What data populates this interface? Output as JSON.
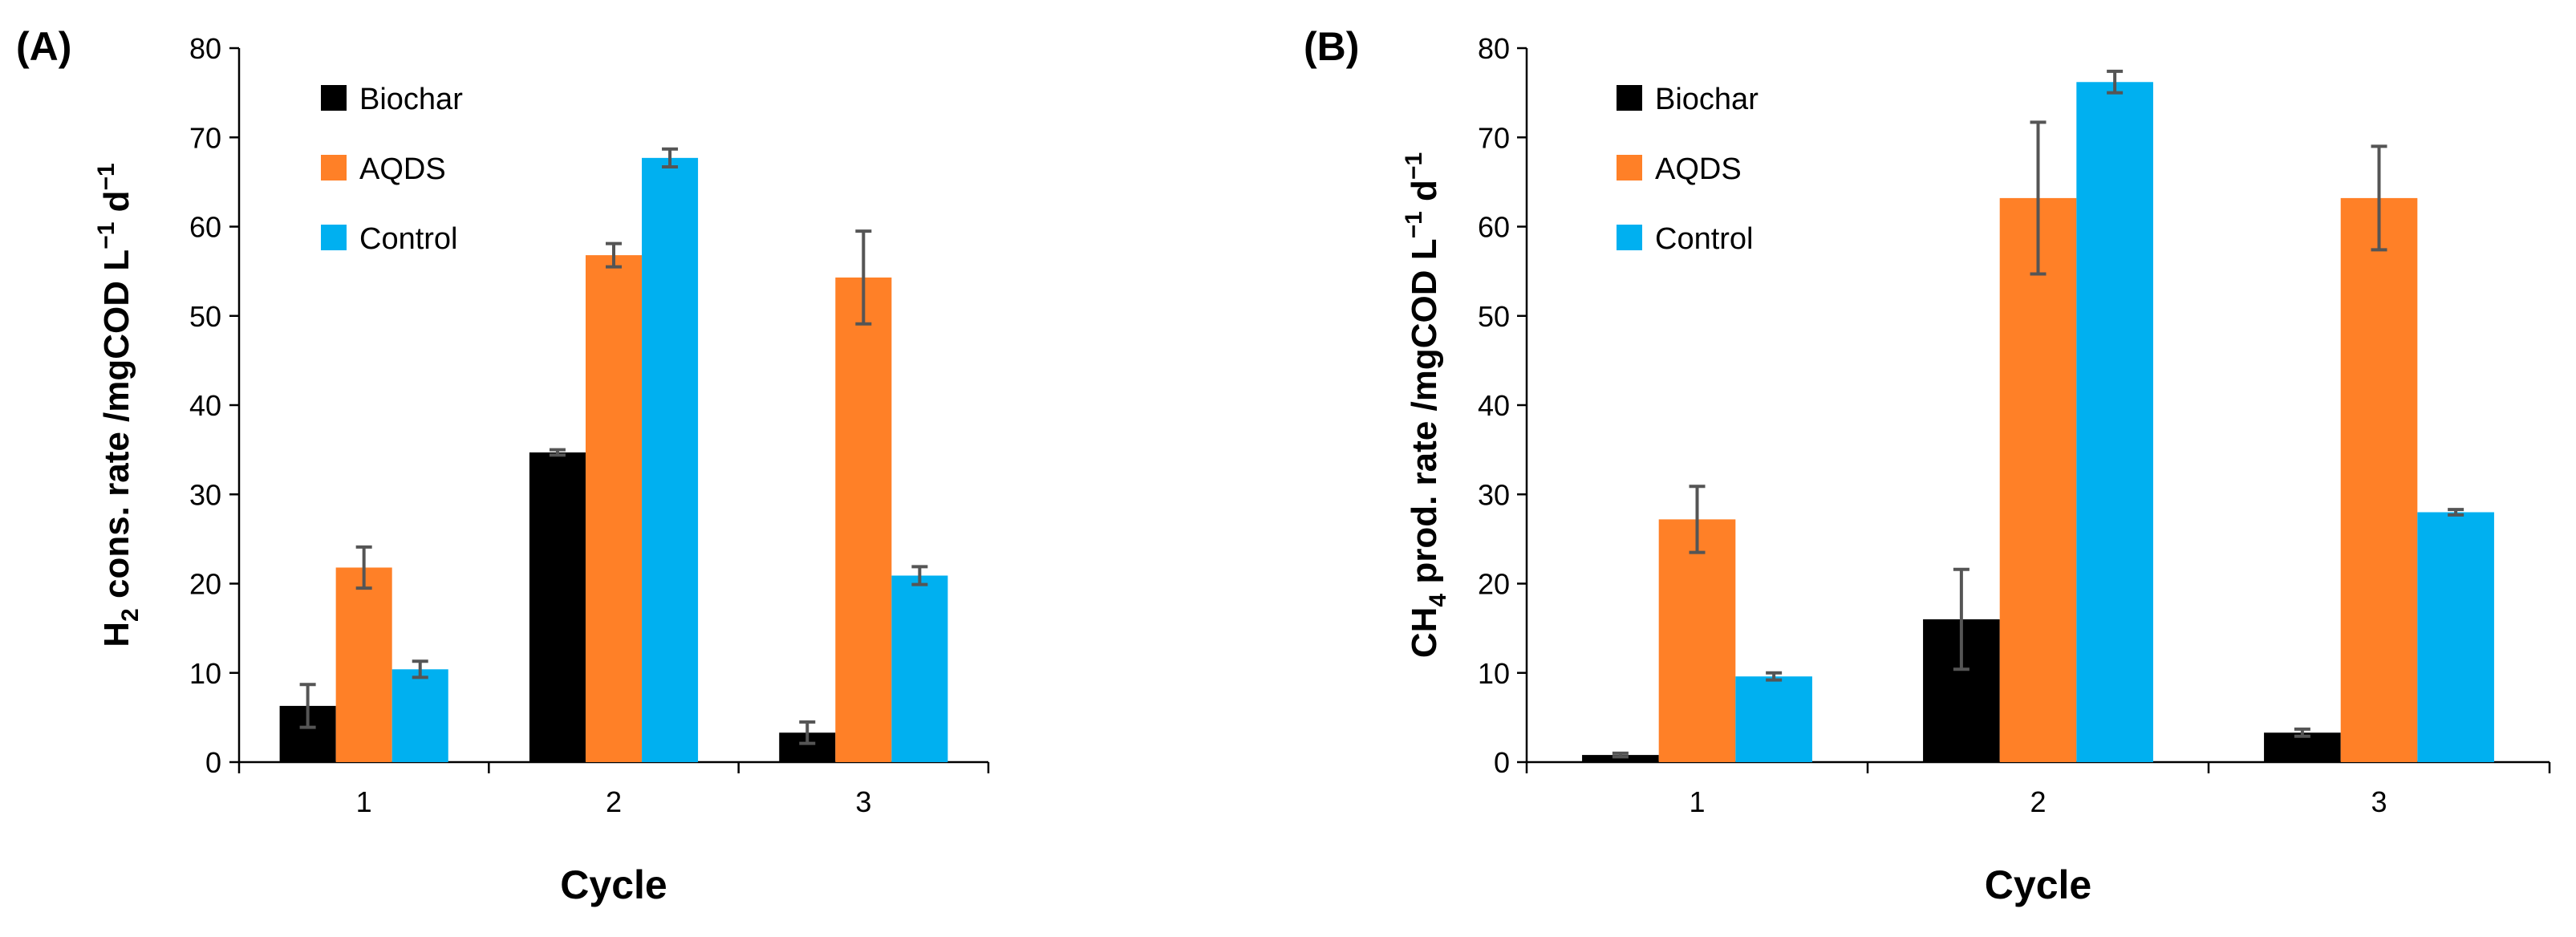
{
  "chart_data": [
    {
      "type": "bar",
      "panel_label": "(A)",
      "categories": [
        "1",
        "2",
        "3"
      ],
      "series": [
        {
          "name": "Biochar",
          "color": "#000000",
          "values": [
            6.3,
            34.7,
            3.3
          ],
          "errors": [
            2.4,
            0.3,
            1.2
          ]
        },
        {
          "name": "AQDS",
          "color": "#FF8027",
          "values": [
            21.8,
            56.8,
            54.3
          ],
          "errors": [
            2.3,
            1.3,
            5.2
          ]
        },
        {
          "name": "Control",
          "color": "#00B0F0",
          "values": [
            10.4,
            67.7,
            20.9
          ],
          "errors": [
            0.9,
            1.0,
            1.0
          ]
        }
      ],
      "ylabel_parts": [
        "H",
        "2",
        " cons. rate /mgCOD L",
        "−1",
        " d",
        "−1"
      ],
      "xlabel": "Cycle",
      "ylim": [
        0,
        80
      ],
      "yticks": [
        "0",
        "10",
        "20",
        "30",
        "40",
        "50",
        "60",
        "70",
        "80"
      ],
      "legend": "top-left"
    },
    {
      "type": "bar",
      "panel_label": "(B)",
      "categories": [
        "1",
        "2",
        "3"
      ],
      "series": [
        {
          "name": "Biochar",
          "color": "#000000",
          "values": [
            0.8,
            16.0,
            3.3
          ],
          "errors": [
            0.2,
            5.6,
            0.4
          ]
        },
        {
          "name": "AQDS",
          "color": "#FF8027",
          "values": [
            27.2,
            63.2,
            63.2
          ],
          "errors": [
            3.7,
            8.5,
            5.8
          ]
        },
        {
          "name": "Control",
          "color": "#00B0F0",
          "values": [
            9.6,
            76.2,
            28.0
          ],
          "errors": [
            0.4,
            1.2,
            0.3
          ]
        }
      ],
      "ylabel_parts": [
        "CH",
        "4",
        " prod. rate /mgCOD L",
        "−1",
        " d",
        "−1"
      ],
      "xlabel": "Cycle",
      "ylim": [
        0,
        80
      ],
      "yticks": [
        "0",
        "10",
        "20",
        "30",
        "40",
        "50",
        "60",
        "70",
        "80"
      ],
      "legend": "top-left"
    }
  ]
}
